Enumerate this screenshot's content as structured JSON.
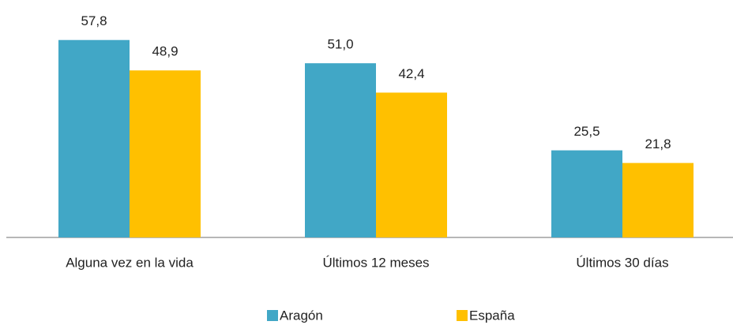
{
  "chart_data": {
    "type": "bar",
    "categories": [
      "Alguna vez en la vida",
      "Últimos 12 meses",
      "Últimos 30 días"
    ],
    "series": [
      {
        "name": "Aragón",
        "color": "#41a7c6",
        "values": [
          57.8,
          51.0,
          25.5
        ],
        "value_labels": [
          "57,8",
          "51,0",
          "25,5"
        ]
      },
      {
        "name": "España",
        "color": "#ffc000",
        "values": [
          48.9,
          42.4,
          21.8
        ],
        "value_labels": [
          "48,9",
          "42,4",
          "21,8"
        ]
      }
    ]
  }
}
